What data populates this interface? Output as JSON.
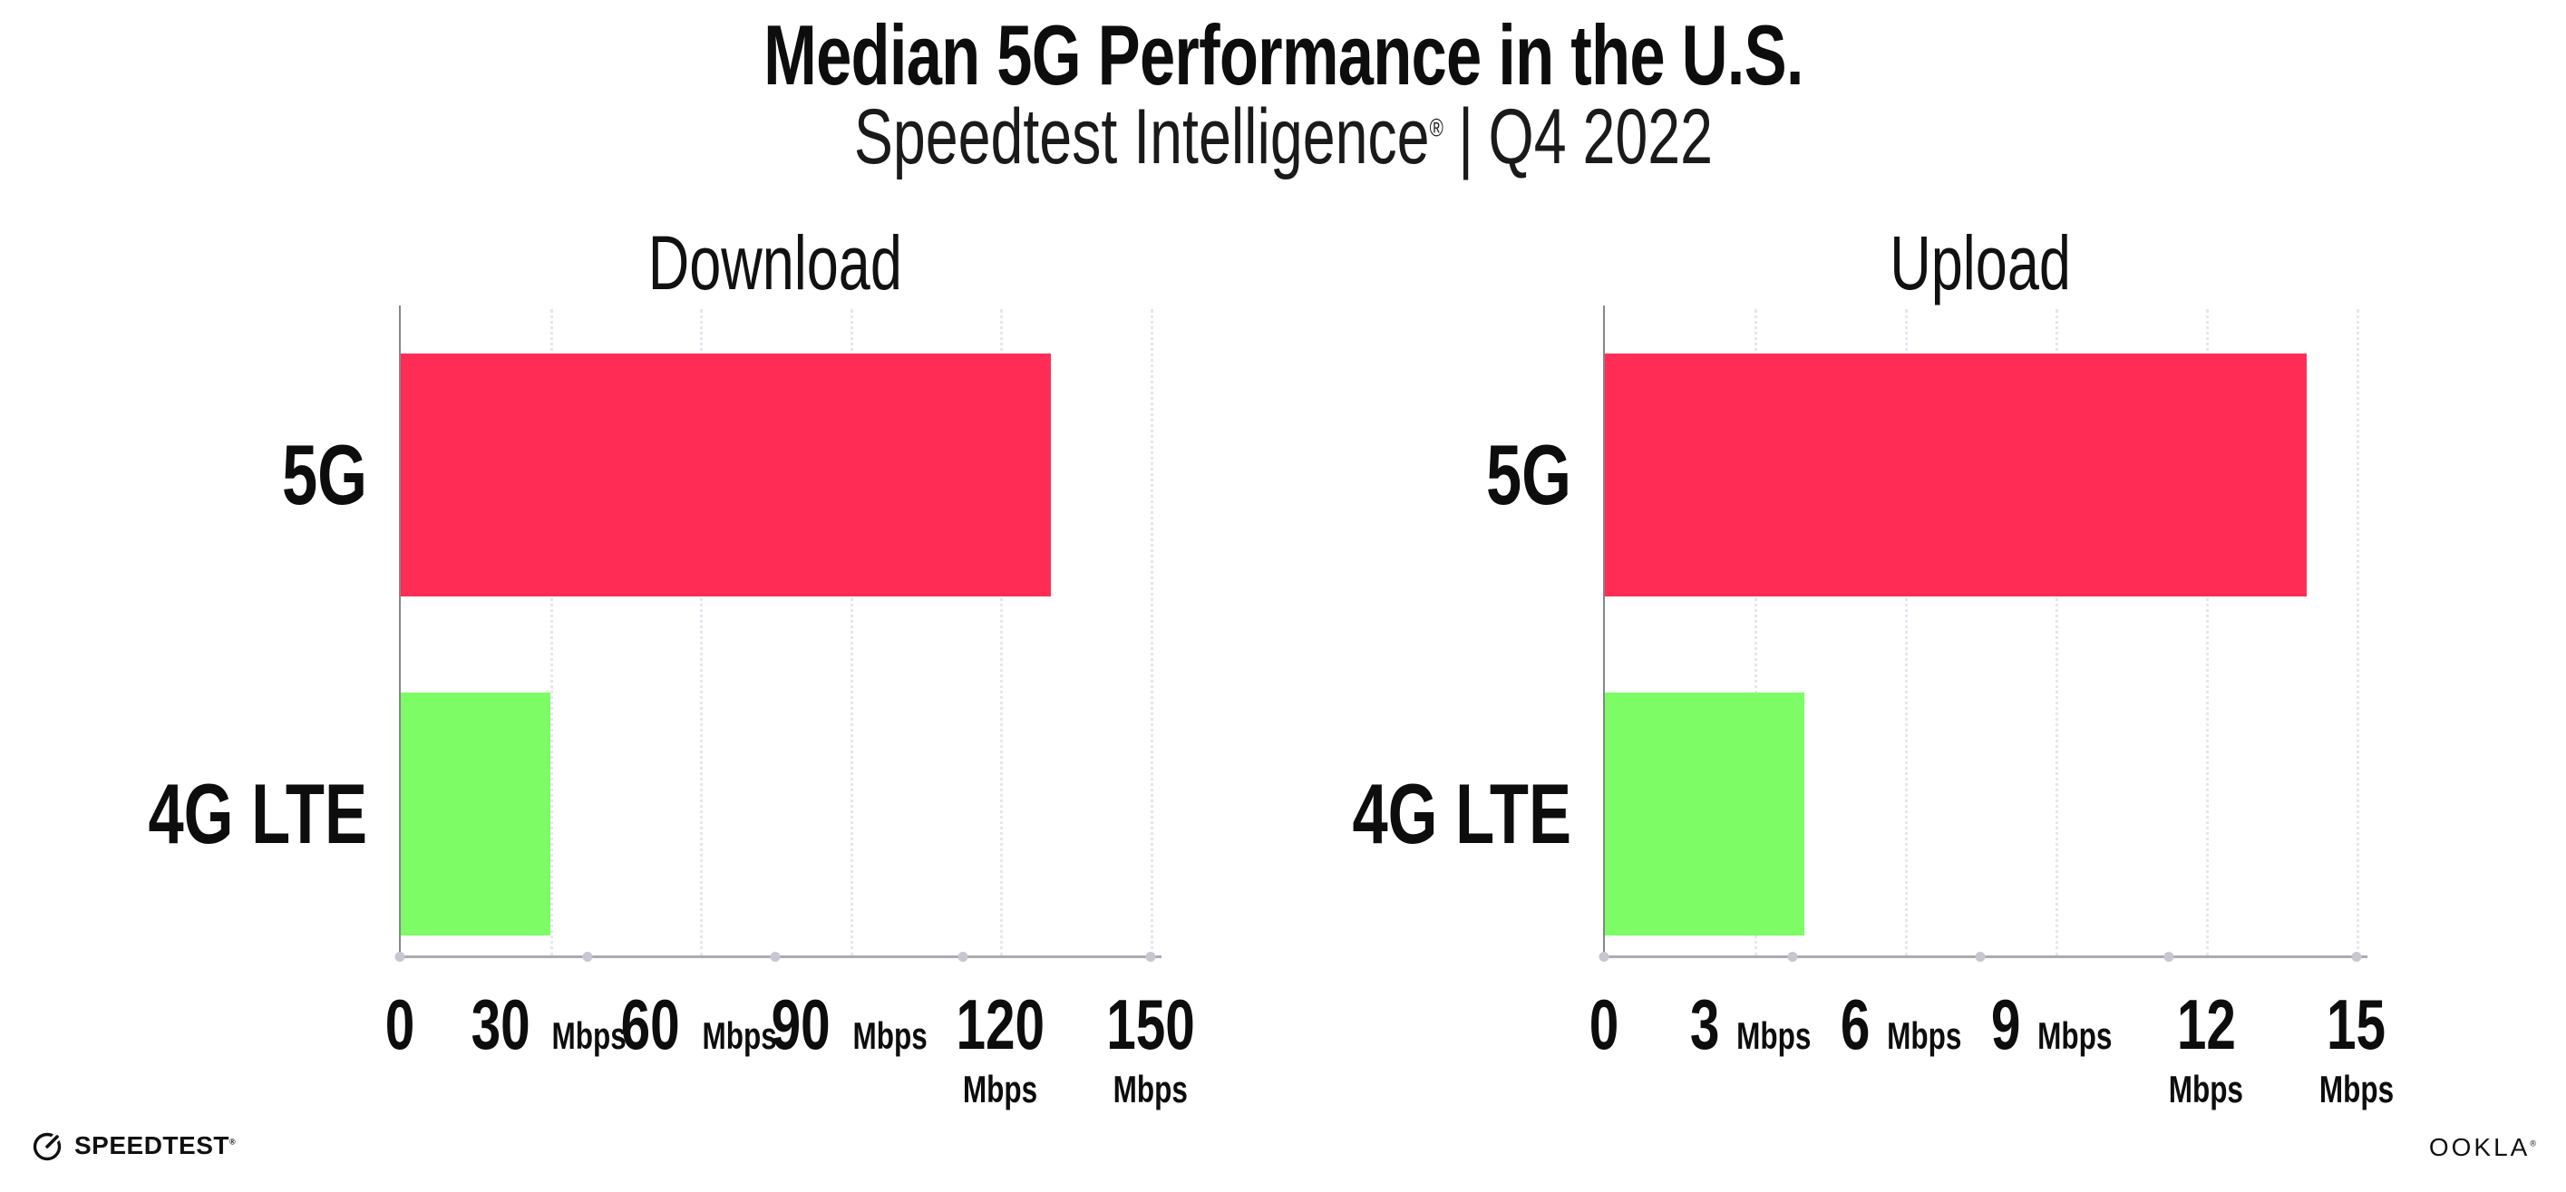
{
  "header": {
    "title": "Median 5G Performance in the U.S.",
    "subtitle": {
      "brand": "Speedtest Intelligence",
      "reg": "®",
      "divider": "|",
      "period": "Q4 2022"
    }
  },
  "chart_data": [
    {
      "type": "bar",
      "orientation": "horizontal",
      "title": "Download",
      "categories": [
        "5G",
        "4G LTE"
      ],
      "values": [
        130,
        30
      ],
      "unit": "Mbps",
      "xlabel": "",
      "ylabel": "",
      "xlim": [
        0,
        150
      ],
      "xticks": [
        0,
        30,
        60,
        90,
        120,
        150
      ],
      "colors": {
        "5G": "#ff2d55",
        "4G LTE": "#7dfc66"
      },
      "grid": "dotted-vertical",
      "legend": "none"
    },
    {
      "type": "bar",
      "orientation": "horizontal",
      "title": "Upload",
      "categories": [
        "5G",
        "4G LTE"
      ],
      "values": [
        14,
        4
      ],
      "unit": "Mbps",
      "xlabel": "",
      "ylabel": "",
      "xlim": [
        0,
        15
      ],
      "xticks": [
        0,
        3,
        6,
        9,
        12,
        15
      ],
      "colors": {
        "5G": "#ff2d55",
        "4G LTE": "#7dfc66"
      },
      "grid": "dotted-vertical",
      "legend": "none"
    }
  ],
  "footer": {
    "speedtest": "SPEEDTEST",
    "speedtest_mark": "®",
    "ookla": "OOKLA",
    "ookla_mark": "®"
  },
  "colors": {
    "bar_5g": "#ff2d55",
    "bar_4g_lte": "#7dfc66",
    "gridline": "#e6e6ef",
    "y_axis": "#85858d",
    "x_axis": "#ababb3",
    "text": "#0d0d0d"
  }
}
